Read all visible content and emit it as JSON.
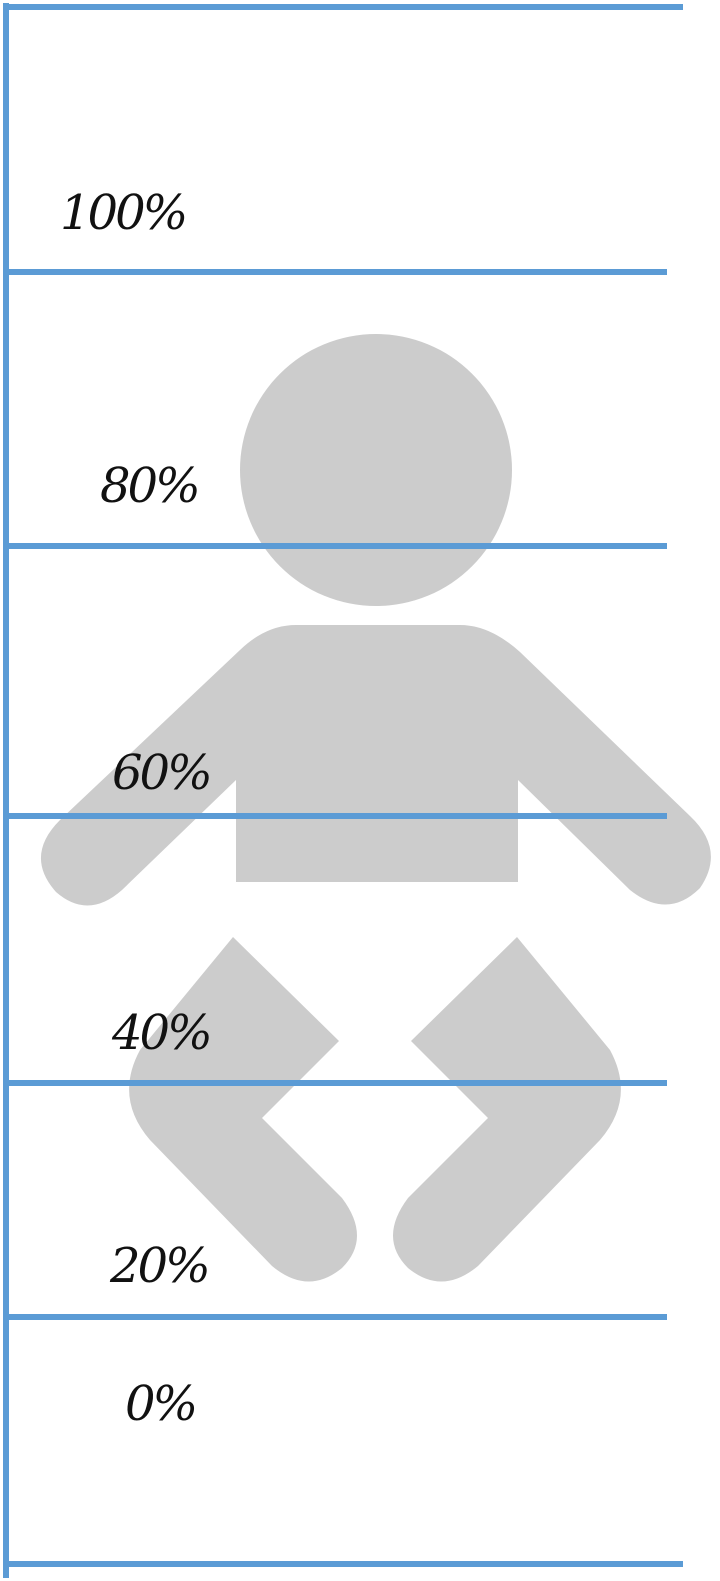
{
  "colors": {
    "frame": "#5b9bd5",
    "figure": "#cccccc",
    "label": "#111111"
  },
  "figure": {
    "icon": "baby-icon"
  },
  "scale": {
    "labels": [
      {
        "value": 100,
        "text": "100%"
      },
      {
        "value": 80,
        "text": "80%"
      },
      {
        "value": 60,
        "text": "60%"
      },
      {
        "value": 40,
        "text": "40%"
      },
      {
        "value": 20,
        "text": "20%"
      },
      {
        "value": 0,
        "text": "0%"
      }
    ]
  }
}
